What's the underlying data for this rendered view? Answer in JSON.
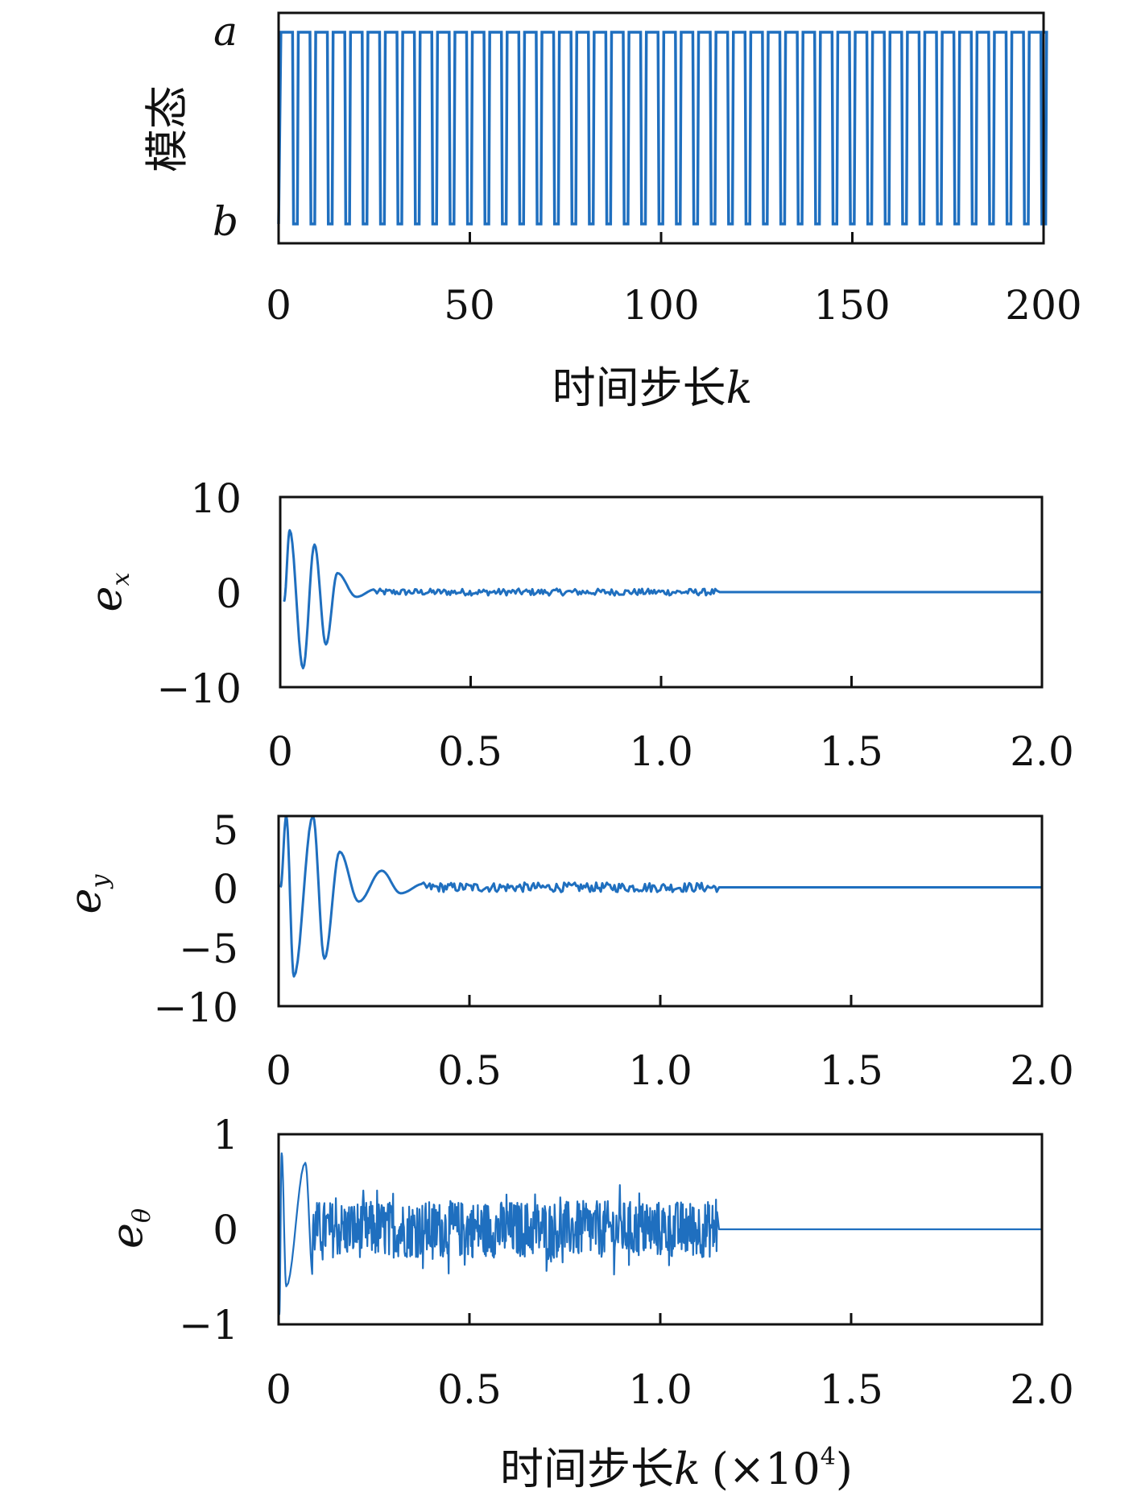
{
  "chart_data": [
    {
      "type": "line",
      "ylabel": "模态",
      "xlabel": "时间步长",
      "xlabel_var": "k",
      "xlim": [
        0,
        200
      ],
      "xticks": [
        "0",
        "50",
        "100",
        "150",
        "200"
      ],
      "yticks": [
        "a",
        "b"
      ],
      "pattern": "periodic switching between modes a and b",
      "period_steps": 4.55,
      "dwell_b_steps": 1.0,
      "color": "#1f6fbf"
    },
    {
      "type": "line",
      "ylabel": "e",
      "ylabel_sub": "x",
      "xlim": [
        0,
        2.0
      ],
      "ylim": [
        -10,
        10
      ],
      "xticks": [
        "0",
        "0.5",
        "1.0",
        "1.5",
        "2.0"
      ],
      "yticks": [
        "10",
        "0",
        "−10"
      ],
      "transient_peaks": [
        [
          0.01,
          -1
        ],
        [
          0.025,
          6.5
        ],
        [
          0.06,
          -8
        ],
        [
          0.09,
          5
        ],
        [
          0.12,
          -5.5
        ],
        [
          0.15,
          2
        ],
        [
          0.2,
          -0.5
        ],
        [
          0.25,
          0.3
        ]
      ],
      "steady_noise_amplitude": 0.35,
      "noise_until": 1.15,
      "color": "#1f6fbf"
    },
    {
      "type": "line",
      "ylabel": "e",
      "ylabel_sub": "y",
      "xlim": [
        0,
        2.0
      ],
      "ylim": [
        -10,
        6
      ],
      "xticks": [
        "0",
        "0.5",
        "1.0",
        "1.5",
        "2.0"
      ],
      "yticks": [
        "5",
        "0",
        "−5",
        "−10"
      ],
      "transient_peaks": [
        [
          0.005,
          0
        ],
        [
          0.02,
          6
        ],
        [
          0.04,
          -7.5
        ],
        [
          0.09,
          6
        ],
        [
          0.12,
          -6
        ],
        [
          0.16,
          3
        ],
        [
          0.21,
          -1.2
        ],
        [
          0.27,
          1.4
        ],
        [
          0.32,
          -0.5
        ],
        [
          0.38,
          0.3
        ]
      ],
      "steady_noise_amplitude": 0.4,
      "noise_until": 1.15,
      "color": "#1f6fbf"
    },
    {
      "type": "line",
      "ylabel": "e",
      "ylabel_sub": "θ",
      "xlabel": "时间步长",
      "xlabel_var": "k",
      "xlabel_scale": "(×10",
      "xlabel_exp": "4",
      "xlabel_close": ")",
      "xlim": [
        0,
        2.0
      ],
      "ylim": [
        -1,
        1
      ],
      "xticks": [
        "0",
        "0.5",
        "1.0",
        "1.5",
        "2.0"
      ],
      "yticks": [
        "1",
        "0",
        "−1"
      ],
      "transient_peaks": [
        [
          0.002,
          -0.9
        ],
        [
          0.008,
          0.8
        ],
        [
          0.02,
          -0.6
        ],
        [
          0.07,
          0.7
        ],
        [
          0.09,
          -0.5
        ]
      ],
      "steady_noise_amplitude": 0.3,
      "noise_until": 1.15,
      "color": "#1f6fbf"
    }
  ]
}
